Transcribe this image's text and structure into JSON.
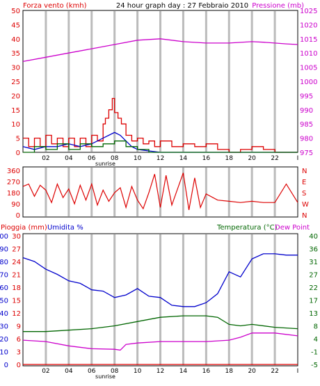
{
  "title": "24 hour graph day : 27 Febbraio 2010",
  "colors": {
    "wind": "#dd0000",
    "pressure": "#cc00cc",
    "winddir": "#dd0000",
    "humidity": "#0000cc",
    "temp": "#006600",
    "dew": "#cc00cc",
    "rain": "#dd0000",
    "grid": "#bbbbbb",
    "border": "#000000"
  },
  "x_ticks": [
    "02",
    "04",
    "06",
    "08",
    "10",
    "12",
    "14",
    "16",
    "18",
    "20",
    "22"
  ],
  "x_end_label": "I",
  "sunrise_label": "sunrise",
  "chart_data": [
    {
      "type": "line",
      "title": "24 hour graph day : 27 Febbraio 2010",
      "left_axis_label": "Forza vento (kmh)",
      "right_axis_label": "Pressione (mb)",
      "left_ticks": [
        0,
        5,
        10,
        15,
        20,
        25,
        30,
        35,
        40,
        45,
        50
      ],
      "right_ticks": [
        975,
        980,
        985,
        990,
        995,
        1000,
        1005,
        1010,
        1015,
        1020,
        1025
      ],
      "x_ticks": [
        "02",
        "04",
        "06",
        "08",
        "10",
        "12",
        "14",
        "16",
        "18",
        "20",
        "22"
      ],
      "ylim_left": [
        0,
        50
      ],
      "ylim_right": [
        975,
        1025
      ],
      "series": [
        {
          "axis": "left",
          "color": "#dd0000",
          "style": "step",
          "x": [
            0,
            0.5,
            1,
            1.5,
            2,
            2.5,
            3,
            3.5,
            4,
            4.5,
            5,
            5.5,
            6,
            6.5,
            7,
            7.2,
            7.5,
            7.8,
            8,
            8.3,
            8.6,
            9,
            9.5,
            10,
            10.5,
            11,
            11.5,
            12,
            13,
            14,
            15,
            16,
            17,
            18,
            19,
            20,
            21,
            22,
            23,
            24
          ],
          "y": [
            5,
            2,
            5,
            2,
            6,
            3,
            5,
            2,
            5,
            2,
            5,
            2,
            6,
            4,
            10,
            12,
            15,
            19,
            14,
            12,
            10,
            6,
            4,
            5,
            3,
            4,
            2,
            4,
            2,
            3,
            2,
            3,
            1,
            0,
            1,
            2,
            1,
            0,
            0,
            0
          ]
        },
        {
          "axis": "left",
          "color": "#0000cc",
          "style": "line",
          "x": [
            0,
            1,
            2,
            3,
            4,
            5,
            6,
            6.5,
            7,
            7.5,
            8,
            8.5,
            9,
            9.5,
            10,
            11,
            12,
            14,
            16,
            18,
            20,
            22,
            24
          ],
          "y": [
            2,
            1,
            2,
            2,
            3,
            2,
            3,
            4,
            5,
            6,
            7,
            6,
            4,
            2,
            1,
            0.5,
            0,
            0,
            0,
            0,
            0,
            0,
            0
          ]
        },
        {
          "axis": "left",
          "color": "#006600",
          "style": "step",
          "x": [
            0,
            1,
            2,
            3,
            4,
            5,
            6,
            7,
            8,
            9,
            10,
            11,
            12,
            14,
            16,
            18,
            20,
            22,
            24
          ],
          "y": [
            0,
            2,
            1,
            3,
            1,
            3,
            2,
            3,
            4,
            2,
            1,
            0,
            0,
            0,
            0,
            0,
            0,
            0,
            0
          ]
        },
        {
          "axis": "right",
          "color": "#cc00cc",
          "style": "line",
          "x": [
            0,
            2,
            4,
            6,
            8,
            10,
            12,
            13,
            14,
            16,
            18,
            20,
            21,
            22,
            23,
            24
          ],
          "y": [
            1007,
            1008.5,
            1010,
            1011.5,
            1013,
            1014.5,
            1015,
            1014.5,
            1014,
            1013.5,
            1013.5,
            1014,
            1013.8,
            1013.5,
            1013.2,
            1013
          ]
        }
      ]
    },
    {
      "type": "line",
      "left_ticks": [
        0,
        90,
        180,
        270,
        360
      ],
      "right_ticks": [
        "N",
        "W",
        "S",
        "E",
        "N"
      ],
      "ylim": [
        0,
        360
      ],
      "series": [
        {
          "color": "#dd0000",
          "style": "line",
          "x": [
            0,
            0.5,
            1,
            1.5,
            2,
            2.5,
            3,
            3.5,
            4,
            4.5,
            5,
            5.5,
            6,
            6.5,
            7,
            7.5,
            8,
            8.5,
            9,
            9.5,
            10,
            10.5,
            11,
            11.5,
            12,
            12.5,
            13,
            13.5,
            14,
            14.5,
            15,
            15.5,
            16,
            17,
            18,
            19,
            20,
            21,
            22,
            23,
            24
          ],
          "y": [
            230,
            250,
            150,
            240,
            200,
            100,
            250,
            140,
            210,
            90,
            240,
            120,
            250,
            80,
            200,
            110,
            180,
            220,
            60,
            230,
            120,
            50,
            180,
            330,
            60,
            320,
            80,
            210,
            340,
            40,
            300,
            60,
            170,
            120,
            110,
            100,
            110,
            100,
            100,
            250,
            100
          ]
        }
      ]
    },
    {
      "type": "line",
      "left_axis_label_1": "Pioggia (mm)",
      "left_axis_label_2": "Umidita %",
      "right_axis_label_1": "Temperatura (°C)",
      "right_axis_label_2": "Dew Point",
      "left_ticks_rain": [
        0,
        3,
        6,
        9,
        12,
        15,
        18,
        21,
        24,
        27,
        30
      ],
      "left_ticks_humidity": [
        0,
        10,
        20,
        30,
        40,
        50,
        60,
        70,
        80,
        90,
        100
      ],
      "right_ticks": [
        -5,
        -1,
        4,
        8,
        13,
        17,
        22,
        27,
        31,
        36,
        40
      ],
      "ylim_humidity": [
        0,
        100
      ],
      "ylim_temp": [
        -5,
        40
      ],
      "series": [
        {
          "name": "Umidita %",
          "axis": "humidity",
          "color": "#0000cc",
          "x": [
            0,
            1,
            2,
            3,
            4,
            5,
            6,
            7,
            8,
            9,
            10,
            11,
            12,
            13,
            14,
            15,
            16,
            17,
            18,
            19,
            20,
            21,
            22,
            23,
            24
          ],
          "y": [
            83,
            80,
            74,
            70,
            65,
            63,
            58,
            57,
            52,
            54,
            59,
            53,
            52,
            46,
            45,
            45,
            48,
            55,
            72,
            68,
            82,
            86,
            86,
            85,
            85
          ]
        },
        {
          "name": "Temperatura (°C)",
          "axis": "temp",
          "color": "#006600",
          "x": [
            0,
            2,
            4,
            6,
            8,
            10,
            12,
            14,
            16,
            17,
            18,
            19,
            20,
            22,
            24
          ],
          "y": [
            6.5,
            6.5,
            7,
            7.5,
            8.5,
            10,
            11.5,
            12,
            12,
            11.5,
            9,
            8.5,
            9,
            8,
            7.5
          ]
        },
        {
          "name": "Dew Point",
          "axis": "temp",
          "color": "#cc00cc",
          "x": [
            0,
            2,
            4,
            6,
            8,
            8.5,
            9,
            10,
            12,
            14,
            16,
            18,
            19,
            20,
            22,
            24
          ],
          "y": [
            3.5,
            3,
            1.5,
            0.5,
            0.3,
            0,
            2,
            2.5,
            3,
            3,
            3,
            3.5,
            4.5,
            6,
            6,
            5
          ]
        },
        {
          "name": "Pioggia (mm)",
          "axis": "rain",
          "color": "#dd0000",
          "x": [
            0,
            24
          ],
          "y": [
            0,
            0
          ]
        }
      ]
    }
  ]
}
